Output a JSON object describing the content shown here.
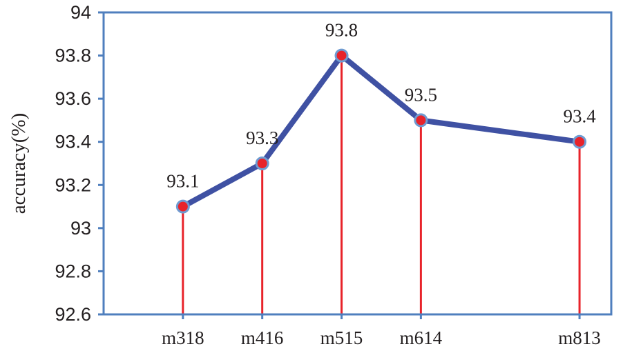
{
  "chart_data": {
    "type": "line",
    "title": "",
    "xlabel": "",
    "ylabel": "accuracy(%)",
    "categories": [
      "m318",
      "m416",
      "m515",
      "m614",
      "m813"
    ],
    "x_positions": [
      3,
      4,
      5,
      6,
      8
    ],
    "xlim": [
      2,
      8.4
    ],
    "series": [
      {
        "values": [
          93.1,
          93.3,
          93.8,
          93.5,
          93.4
        ],
        "data_labels": [
          "93.1",
          "93.3",
          "93.8",
          "93.5",
          "93.4"
        ]
      }
    ],
    "ylim": [
      92.6,
      94.0
    ],
    "yticks": [
      92.6,
      92.8,
      93.0,
      93.2,
      93.4,
      93.6,
      93.8,
      94.0
    ],
    "ytick_labels": [
      "92.6",
      "92.8",
      "93",
      "93.2",
      "93.4",
      "93.6",
      "93.8",
      "94"
    ],
    "drop_lines": true,
    "grid": false,
    "legend": "none",
    "colors": {
      "line": "#3f51a3",
      "marker_fill": "#e8232a",
      "marker_edge": "#6f9bd1",
      "drop_line": "#e8232a",
      "frame": "#4f7fbe"
    }
  }
}
